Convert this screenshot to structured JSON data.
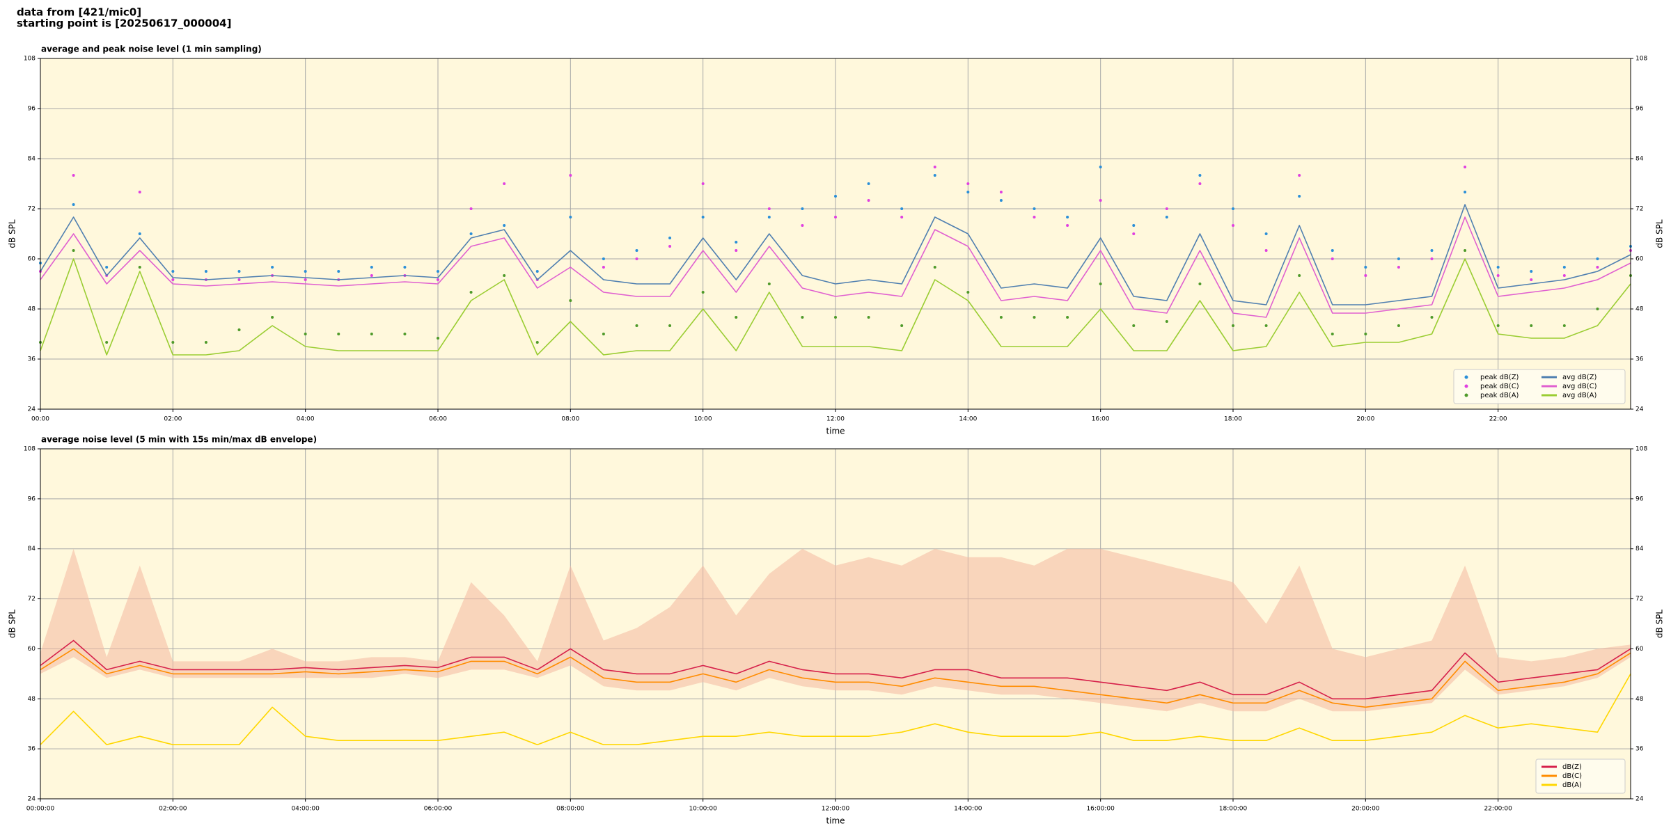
{
  "header": {
    "source": "data from [421/mic0]",
    "start": "starting point is [20250617_000004]"
  },
  "chart_data": [
    {
      "type": "line",
      "title": "average and peak noise level (1 min sampling)",
      "xlabel": "time",
      "ylabel": "dB SPL",
      "y2label": "dB SPL",
      "x": [
        0,
        0.5,
        1,
        1.5,
        2,
        2.5,
        3,
        3.5,
        4,
        4.5,
        5,
        5.5,
        6,
        6.5,
        7,
        7.5,
        8,
        8.5,
        9,
        9.5,
        10,
        10.5,
        11,
        11.5,
        12,
        12.5,
        13,
        13.5,
        14,
        14.5,
        15,
        15.5,
        16,
        16.5,
        17,
        17.5,
        18,
        18.5,
        19,
        19.5,
        20,
        20.5,
        21,
        21.5,
        22,
        22.5,
        23,
        23.5,
        24
      ],
      "xlim": [
        0,
        24
      ],
      "xticks": [
        {
          "value": 0,
          "label": "00:00"
        },
        {
          "value": 2,
          "label": "02:00"
        },
        {
          "value": 4,
          "label": "04:00"
        },
        {
          "value": 6,
          "label": "06:00"
        },
        {
          "value": 8,
          "label": "08:00"
        },
        {
          "value": 10,
          "label": "10:00"
        },
        {
          "value": 12,
          "label": "12:00"
        },
        {
          "value": 14,
          "label": "14:00"
        },
        {
          "value": 16,
          "label": "16:00"
        },
        {
          "value": 18,
          "label": "18:00"
        },
        {
          "value": 20,
          "label": "20:00"
        },
        {
          "value": 22,
          "label": "22:00"
        }
      ],
      "ylim": [
        24,
        108
      ],
      "yticks": [
        24,
        36,
        48,
        60,
        72,
        84,
        96,
        108
      ],
      "y2lim": [
        24,
        108
      ],
      "y2ticks": [
        24,
        36,
        48,
        60,
        72,
        84,
        96,
        108
      ],
      "grid": true,
      "legend_loc": "lower right",
      "legend_columns": 2,
      "series": [
        {
          "name": "peak dB(Z)",
          "type": "scatter",
          "color": "#2a8fd8",
          "values": [
            59,
            73,
            58,
            66,
            57,
            57,
            57,
            58,
            57,
            57,
            58,
            58,
            57,
            66,
            68,
            57,
            70,
            60,
            62,
            65,
            70,
            64,
            70,
            72,
            75,
            78,
            72,
            80,
            76,
            74,
            72,
            70,
            82,
            68,
            70,
            80,
            72,
            66,
            75,
            62,
            58,
            60,
            62,
            76,
            58,
            57,
            58,
            60,
            63
          ]
        },
        {
          "name": "peak dB(C)",
          "type": "scatter",
          "color": "#e040e0",
          "values": [
            57,
            80,
            56,
            76,
            55,
            55,
            55,
            56,
            55,
            55,
            56,
            56,
            55,
            72,
            78,
            55,
            80,
            58,
            60,
            63,
            78,
            62,
            72,
            68,
            70,
            74,
            70,
            82,
            78,
            76,
            70,
            68,
            74,
            66,
            72,
            78,
            68,
            62,
            80,
            60,
            56,
            58,
            60,
            82,
            56,
            55,
            56,
            58,
            62
          ]
        },
        {
          "name": "peak dB(A)",
          "type": "scatter",
          "color": "#4e9a2a",
          "values": [
            40,
            62,
            40,
            58,
            40,
            40,
            43,
            46,
            42,
            42,
            42,
            42,
            41,
            52,
            56,
            40,
            50,
            42,
            44,
            44,
            52,
            46,
            54,
            46,
            46,
            46,
            44,
            58,
            52,
            46,
            46,
            46,
            54,
            44,
            45,
            54,
            44,
            44,
            56,
            42,
            42,
            44,
            46,
            62,
            44,
            44,
            44,
            48,
            56
          ]
        },
        {
          "name": "avg dB(Z)",
          "type": "line",
          "color": "#4f7fb0",
          "values": [
            57,
            70,
            56,
            65,
            55.5,
            55,
            55.5,
            56,
            55.5,
            55,
            55.5,
            56,
            55.5,
            65,
            67,
            55,
            62,
            55,
            54,
            54,
            65,
            55,
            66,
            56,
            54,
            55,
            54,
            70,
            66,
            53,
            54,
            53,
            65,
            51,
            50,
            66,
            50,
            49,
            68,
            49,
            49,
            50,
            51,
            73,
            53,
            54,
            55,
            57,
            61
          ]
        },
        {
          "name": "avg dB(C)",
          "type": "line",
          "color": "#e060d0",
          "values": [
            55,
            66,
            54,
            62,
            54,
            53.5,
            54,
            54.5,
            54,
            53.5,
            54,
            54.5,
            54,
            63,
            65,
            53,
            58,
            52,
            51,
            51,
            62,
            52,
            63,
            53,
            51,
            52,
            51,
            67,
            63,
            50,
            51,
            50,
            62,
            48,
            47,
            62,
            47,
            46,
            65,
            47,
            47,
            48,
            49,
            70,
            51,
            52,
            53,
            55,
            59
          ]
        },
        {
          "name": "avg dB(A)",
          "type": "line",
          "color": "#9acd32",
          "values": [
            38,
            60,
            37,
            57,
            37,
            37,
            38,
            44,
            39,
            38,
            38,
            38,
            38,
            50,
            55,
            37,
            45,
            37,
            38,
            38,
            48,
            38,
            52,
            39,
            39,
            39,
            38,
            55,
            50,
            39,
            39,
            39,
            48,
            38,
            38,
            50,
            38,
            39,
            52,
            39,
            40,
            40,
            42,
            60,
            42,
            41,
            41,
            44,
            54
          ]
        }
      ]
    },
    {
      "type": "line",
      "title": "average noise level (5 min with 15s min/max dB envelope)",
      "xlabel": "time",
      "ylabel": "dB SPL",
      "y2label": "dB SPL",
      "x": [
        0,
        0.5,
        1,
        1.5,
        2,
        2.5,
        3,
        3.5,
        4,
        4.5,
        5,
        5.5,
        6,
        6.5,
        7,
        7.5,
        8,
        8.5,
        9,
        9.5,
        10,
        10.5,
        11,
        11.5,
        12,
        12.5,
        13,
        13.5,
        14,
        14.5,
        15,
        15.5,
        16,
        16.5,
        17,
        17.5,
        18,
        18.5,
        19,
        19.5,
        20,
        20.5,
        21,
        21.5,
        22,
        22.5,
        23,
        23.5,
        24
      ],
      "xlim": [
        0,
        24
      ],
      "xticks": [
        {
          "value": 0,
          "label": "00:00:00"
        },
        {
          "value": 2,
          "label": "02:00:00"
        },
        {
          "value": 4,
          "label": "04:00:00"
        },
        {
          "value": 6,
          "label": "06:00:00"
        },
        {
          "value": 8,
          "label": "08:00:00"
        },
        {
          "value": 10,
          "label": "10:00:00"
        },
        {
          "value": 12,
          "label": "12:00:00"
        },
        {
          "value": 14,
          "label": "14:00:00"
        },
        {
          "value": 16,
          "label": "16:00:00"
        },
        {
          "value": 18,
          "label": "18:00:00"
        },
        {
          "value": 20,
          "label": "20:00:00"
        },
        {
          "value": 22,
          "label": "22:00:00"
        }
      ],
      "ylim": [
        24,
        108
      ],
      "yticks": [
        24,
        36,
        48,
        60,
        72,
        84,
        96,
        108
      ],
      "y2lim": [
        24,
        108
      ],
      "y2ticks": [
        24,
        36,
        48,
        60,
        72,
        84,
        96,
        108
      ],
      "grid": true,
      "legend_loc": "lower right",
      "legend_columns": 1,
      "envelope": {
        "color": "#f4b8a0",
        "upper": [
          59,
          84,
          58,
          80,
          57,
          57,
          57,
          60,
          57,
          57,
          58,
          58,
          57,
          76,
          68,
          57,
          80,
          62,
          65,
          70,
          80,
          68,
          78,
          84,
          80,
          82,
          80,
          84,
          82,
          82,
          80,
          84,
          84,
          82,
          80,
          78,
          76,
          66,
          80,
          60,
          58,
          60,
          62,
          80,
          58,
          57,
          58,
          60,
          61
        ],
        "lower": [
          54,
          58,
          53,
          55,
          53,
          53,
          53,
          53,
          53,
          53,
          53,
          54,
          53,
          55,
          55,
          53,
          56,
          51,
          50,
          50,
          52,
          50,
          53,
          51,
          50,
          50,
          49,
          51,
          50,
          49,
          49,
          48,
          47,
          46,
          45,
          47,
          45,
          45,
          48,
          45,
          45,
          46,
          47,
          55,
          49,
          50,
          51,
          53,
          58
        ]
      },
      "series": [
        {
          "name": "dB(Z)",
          "type": "line",
          "color": "#d6204a",
          "values": [
            56,
            62,
            55,
            57,
            55,
            55,
            55,
            55,
            55.5,
            55,
            55.5,
            56,
            55.5,
            58,
            58,
            55,
            60,
            55,
            54,
            54,
            56,
            54,
            57,
            55,
            54,
            54,
            53,
            55,
            55,
            53,
            53,
            53,
            52,
            51,
            50,
            52,
            49,
            49,
            52,
            48,
            48,
            49,
            50,
            59,
            52,
            53,
            54,
            55,
            60
          ]
        },
        {
          "name": "dB(C)",
          "type": "line",
          "color": "#ff8c00",
          "values": [
            55,
            60,
            54,
            56,
            54,
            54,
            54,
            54,
            54.5,
            54,
            54.5,
            55,
            54.5,
            57,
            57,
            54,
            58,
            53,
            52,
            52,
            54,
            52,
            55,
            53,
            52,
            52,
            51,
            53,
            52,
            51,
            51,
            50,
            49,
            48,
            47,
            49,
            47,
            47,
            50,
            47,
            46,
            47,
            48,
            57,
            50,
            51,
            52,
            54,
            59
          ]
        },
        {
          "name": "dB(A)",
          "type": "line",
          "color": "#ffd700",
          "values": [
            37,
            45,
            37,
            39,
            37,
            37,
            37,
            46,
            39,
            38,
            38,
            38,
            38,
            39,
            40,
            37,
            40,
            37,
            37,
            38,
            39,
            39,
            40,
            39,
            39,
            39,
            40,
            42,
            40,
            39,
            39,
            39,
            40,
            38,
            38,
            39,
            38,
            38,
            41,
            38,
            38,
            39,
            40,
            44,
            41,
            42,
            41,
            40,
            54
          ]
        }
      ]
    }
  ]
}
